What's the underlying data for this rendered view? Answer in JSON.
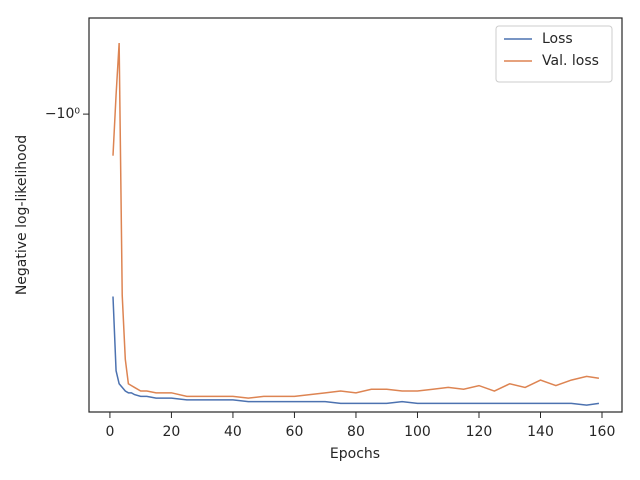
{
  "chart_data": {
    "type": "line",
    "xlabel": "Epochs",
    "ylabel": "Negative log-likelihood",
    "yscale": "symlog",
    "linthresh": 1,
    "xlim": [
      -6.8,
      166.5
    ],
    "ylim": [
      -2.21,
      -0.9
    ],
    "xticks": [
      0,
      20,
      40,
      60,
      80,
      100,
      120,
      140,
      160
    ],
    "yticks": [
      {
        "value": -1,
        "label": "−10⁰"
      }
    ],
    "legend": "upper right",
    "x": [
      1,
      2,
      3,
      4,
      5,
      6,
      7,
      8,
      10,
      12,
      15,
      20,
      25,
      30,
      35,
      40,
      45,
      50,
      55,
      60,
      65,
      70,
      75,
      80,
      85,
      90,
      95,
      100,
      105,
      110,
      115,
      120,
      125,
      130,
      135,
      140,
      145,
      150,
      155,
      159
    ],
    "series": [
      {
        "name": "Loss",
        "color": "#4c72b0",
        "values": [
          -1.625,
          -1.98,
          -2.05,
          -2.07,
          -2.09,
          -2.1,
          -2.1,
          -2.11,
          -2.12,
          -2.12,
          -2.13,
          -2.13,
          -2.14,
          -2.14,
          -2.14,
          -2.14,
          -2.15,
          -2.15,
          -2.15,
          -2.15,
          -2.15,
          -2.15,
          -2.16,
          -2.16,
          -2.16,
          -2.16,
          -2.15,
          -2.16,
          -2.16,
          -2.16,
          -2.16,
          -2.16,
          -2.16,
          -2.16,
          -2.16,
          -2.16,
          -2.16,
          -2.16,
          -2.17,
          -2.16
        ]
      },
      {
        "name": "Val. loss",
        "color": "#dd8452",
        "values": [
          -1.117,
          -0.98,
          -0.926,
          -1.62,
          -1.92,
          -2.05,
          -2.06,
          -2.07,
          -2.09,
          -2.09,
          -2.1,
          -2.1,
          -2.12,
          -2.12,
          -2.12,
          -2.12,
          -2.13,
          -2.12,
          -2.12,
          -2.12,
          -2.11,
          -2.1,
          -2.09,
          -2.1,
          -2.08,
          -2.08,
          -2.09,
          -2.09,
          -2.08,
          -2.07,
          -2.08,
          -2.06,
          -2.09,
          -2.05,
          -2.07,
          -2.03,
          -2.06,
          -2.03,
          -2.01,
          -2.02
        ]
      }
    ]
  }
}
